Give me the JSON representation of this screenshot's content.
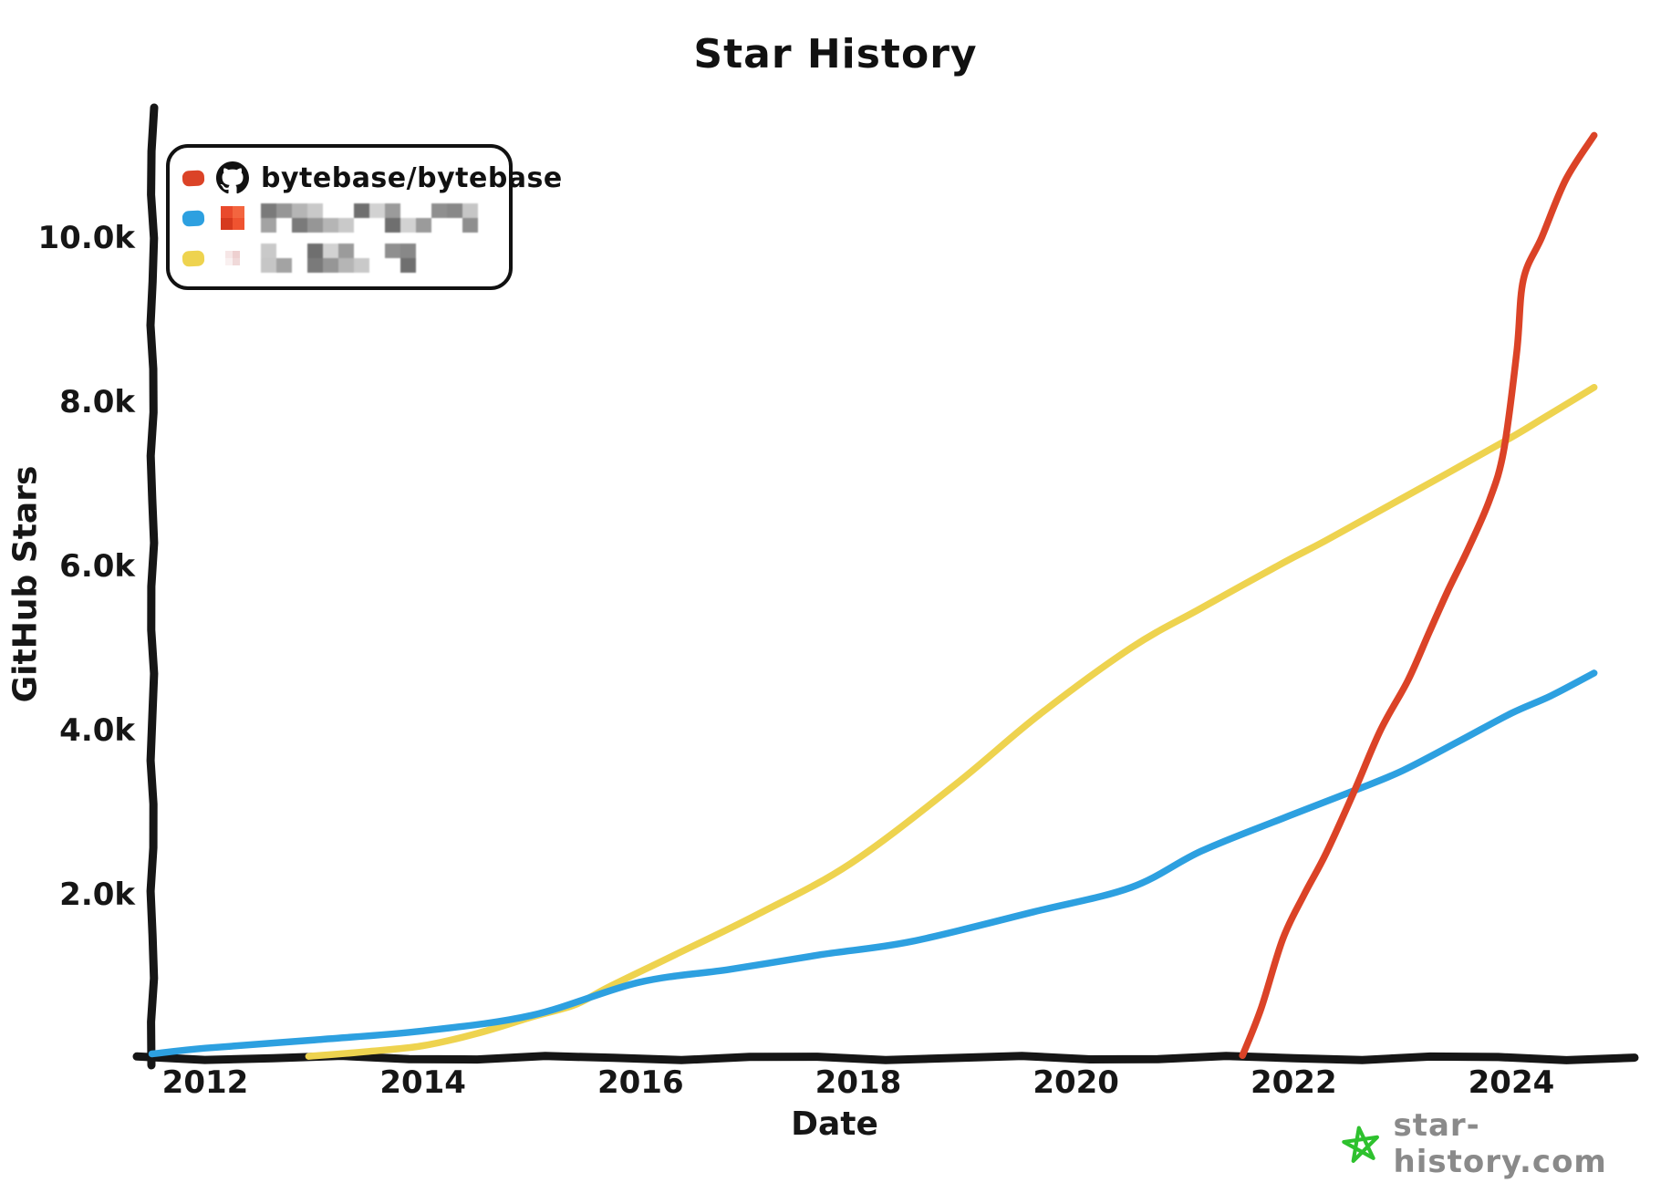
{
  "title": "Star History",
  "axes": {
    "x": {
      "label": "Date",
      "tick_labels": [
        "2012",
        "2014",
        "2016",
        "2018",
        "2020",
        "2022",
        "2024"
      ],
      "tick_years": [
        2012,
        2014,
        2016,
        2018,
        2020,
        2022,
        2024
      ],
      "range": [
        2011.4,
        2025.0
      ]
    },
    "y": {
      "label": "GitHub Stars",
      "tick_labels": [
        "2.0k",
        "4.0k",
        "6.0k",
        "8.0k",
        "10.0k"
      ],
      "tick_values": [
        2000,
        4000,
        6000,
        8000,
        10000
      ],
      "range": [
        0,
        11600
      ]
    }
  },
  "legend": {
    "items": [
      {
        "id": "bytebase",
        "color": "#db4327",
        "icon": "github",
        "label": "bytebase/bytebase",
        "redacted": false
      },
      {
        "id": "series-2",
        "color": "#2da0e0",
        "icon": "avatar-orange",
        "label": "",
        "redacted": true,
        "redacted_width": 244
      },
      {
        "id": "series-3",
        "color": "#eed34f",
        "icon": "avatar-pink",
        "label": "",
        "redacted": true,
        "redacted_width": 184
      }
    ]
  },
  "branding": {
    "site": "star-history.com",
    "star_color": "#2ec12e",
    "text_color": "#8a8a8a"
  },
  "chart_data": {
    "type": "line",
    "title": "Star History",
    "xlabel": "Date",
    "ylabel": "GitHub Stars",
    "x_unit": "year (decimal)",
    "ylim": [
      0,
      11600
    ],
    "xlim": [
      2011.4,
      2025.0
    ],
    "grid": false,
    "legend_position": "top-left",
    "series": [
      {
        "name": "bytebase/bytebase",
        "color": "#db4327",
        "points": [
          [
            2021.53,
            30
          ],
          [
            2021.7,
            600
          ],
          [
            2021.9,
            1450
          ],
          [
            2022.1,
            2000
          ],
          [
            2022.3,
            2500
          ],
          [
            2022.56,
            3260
          ],
          [
            2022.8,
            4000
          ],
          [
            2023.05,
            4600
          ],
          [
            2023.25,
            5200
          ],
          [
            2023.42,
            5700
          ],
          [
            2023.61,
            6220
          ],
          [
            2023.8,
            6800
          ],
          [
            2023.93,
            7400
          ],
          [
            2024.05,
            8600
          ],
          [
            2024.11,
            9480
          ],
          [
            2024.28,
            10000
          ],
          [
            2024.5,
            10700
          ],
          [
            2024.76,
            11240
          ]
        ]
      },
      {
        "name": "(redacted repo 2)",
        "color": "#2da0e0",
        "points": [
          [
            2011.51,
            50
          ],
          [
            2012,
            120
          ],
          [
            2013,
            220
          ],
          [
            2014,
            330
          ],
          [
            2015,
            520
          ],
          [
            2015.98,
            920
          ],
          [
            2016.82,
            1080
          ],
          [
            2017.66,
            1260
          ],
          [
            2018.49,
            1420
          ],
          [
            2019.61,
            1780
          ],
          [
            2020.51,
            2080
          ],
          [
            2021.15,
            2520
          ],
          [
            2021.9,
            2920
          ],
          [
            2022.56,
            3260
          ],
          [
            2023,
            3500
          ],
          [
            2023.52,
            3860
          ],
          [
            2024,
            4200
          ],
          [
            2024.36,
            4410
          ],
          [
            2024.76,
            4690
          ]
        ]
      },
      {
        "name": "(redacted repo 3)",
        "color": "#eed34f",
        "points": [
          [
            2012.95,
            20
          ],
          [
            2013.5,
            80
          ],
          [
            2014,
            150
          ],
          [
            2014.5,
            300
          ],
          [
            2015,
            500
          ],
          [
            2015.4,
            650
          ],
          [
            2015.7,
            860
          ],
          [
            2016.32,
            1260
          ],
          [
            2017.09,
            1760
          ],
          [
            2017.93,
            2370
          ],
          [
            2018.89,
            3330
          ],
          [
            2019.67,
            4190
          ],
          [
            2020.51,
            5000
          ],
          [
            2021.15,
            5480
          ],
          [
            2021.9,
            6030
          ],
          [
            2022.29,
            6300
          ],
          [
            2023,
            6820
          ],
          [
            2023.92,
            7500
          ],
          [
            2024.3,
            7800
          ],
          [
            2024.76,
            8170
          ]
        ]
      }
    ]
  }
}
